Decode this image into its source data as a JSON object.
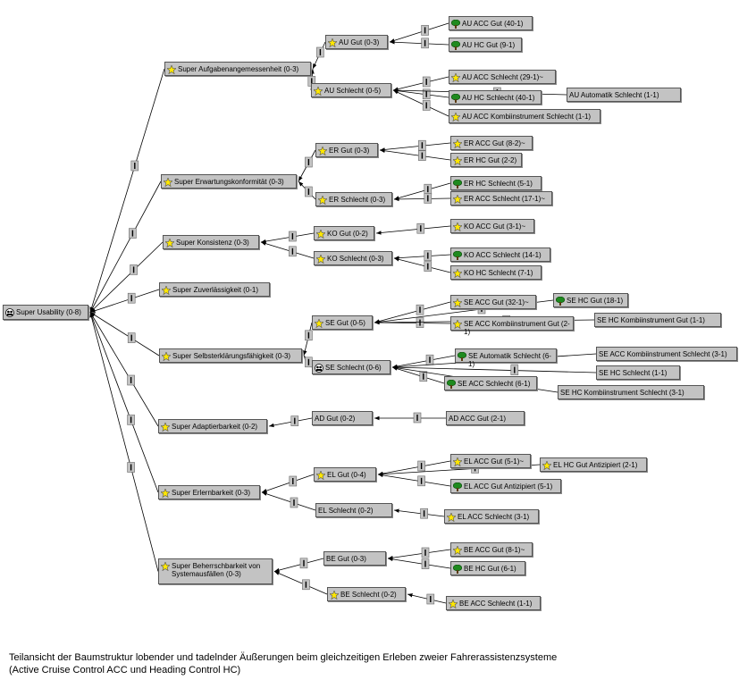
{
  "nodes": [
    {
      "label": "Super Usability (0-8)",
      "parent": null
    },
    {
      "label": "Super Aufgabenangemessenheit (0-3)",
      "parent": 0
    },
    {
      "label": "Super Erwartungskonformität (0-3)",
      "parent": 0
    },
    {
      "label": "Super Konsistenz (0-3)",
      "parent": 0
    },
    {
      "label": "Super Zuverlässigkeit (0-1)",
      "parent": 0
    },
    {
      "label": "Super Selbsterklärungsfähigkeit (0-3)",
      "parent": 0
    },
    {
      "label": "Super Adaptierbarkeit (0-2)",
      "parent": 0
    },
    {
      "label": "Super Erlernbarkeit (0-3)",
      "parent": 0
    },
    {
      "label": "Super Beherrschbarkeit von Systemausfällen (0-3)",
      "parent": 0
    },
    {
      "label": "AU Gut (0-3)",
      "parent": 1
    },
    {
      "label": "AU Schlecht (0-5)",
      "parent": 1
    },
    {
      "label": "ER Gut (0-3)",
      "parent": 2
    },
    {
      "label": "ER Schlecht (0-3)",
      "parent": 2
    },
    {
      "label": "KO Gut (0-2)",
      "parent": 3
    },
    {
      "label": "KO Schlecht (0-3)",
      "parent": 3
    },
    {
      "label": "SE Gut (0-5)",
      "parent": 5
    },
    {
      "label": "SE Schlecht (0-6)",
      "parent": 5
    },
    {
      "label": "AD Gut (0-2)",
      "parent": 6
    },
    {
      "label": "EL Gut (0-4)",
      "parent": 7
    },
    {
      "label": "EL Schlecht (0-2)",
      "parent": 7
    },
    {
      "label": "BE Gut (0-3)",
      "parent": 8
    },
    {
      "label": "BE Schlecht (0-2)",
      "parent": 8
    },
    {
      "label": "AU ACC Gut (40-1)",
      "parent": 9
    },
    {
      "label": "AU HC Gut (9-1)",
      "parent": 9
    },
    {
      "label": "AU ACC Schlecht (29-1)~",
      "parent": 10
    },
    {
      "label": "AU HC Schlecht (40-1)",
      "parent": 10
    },
    {
      "label": "AU Automatik Schlecht (1-1)",
      "parent": 10
    },
    {
      "label": "AU ACC Kombiinstrument Schlecht (1-1)",
      "parent": 10
    },
    {
      "label": "ER ACC Gut (8-2)~",
      "parent": 11
    },
    {
      "label": "ER HC Gut (2-2)",
      "parent": 11
    },
    {
      "label": "ER HC Schlecht (5-1)",
      "parent": 12
    },
    {
      "label": "ER ACC Schlecht (17-1)~",
      "parent": 12
    },
    {
      "label": "KO ACC Gut (3-1)~",
      "parent": 13
    },
    {
      "label": "KO ACC Schlecht (14-1)",
      "parent": 14
    },
    {
      "label": "KO HC Schlecht (7-1)",
      "parent": 14
    },
    {
      "label": "SE ACC Gut (32-1)~",
      "parent": 15
    },
    {
      "label": "SE HC Gut (18-1)",
      "parent": 15
    },
    {
      "label": "SE ACC Kombiinstrument Gut (2-1)",
      "parent": 15
    },
    {
      "label": "SE HC Kombiinstrument Gut (1-1)",
      "parent": 15
    },
    {
      "label": "SE Automatik Schlecht (6-1)",
      "parent": 16
    },
    {
      "label": "SE ACC Kombiinstrument Schlecht (3-1)",
      "parent": 16
    },
    {
      "label": "SE HC Schlecht (1-1)",
      "parent": 16
    },
    {
      "label": "SE ACC Schlecht (6-1)",
      "parent": 16
    },
    {
      "label": "SE HC Kombiinstrument Schlecht (3-1)",
      "parent": 16
    },
    {
      "label": "AD ACC Gut (2-1)",
      "parent": 17
    },
    {
      "label": "EL ACC Gut (5-1)~",
      "parent": 18
    },
    {
      "label": "EL HC Gut Antizipiert (2-1)",
      "parent": 18
    },
    {
      "label": "EL ACC Gut Antizipiert (5-1)",
      "parent": 18
    },
    {
      "label": "EL ACC Schlecht (3-1)",
      "parent": 19
    },
    {
      "label": "BE ACC Gut (8-1)~",
      "parent": 20
    },
    {
      "label": "BE HC Gut (6-1)",
      "parent": 20
    },
    {
      "label": "BE ACC Schlecht (1-1)",
      "parent": 21
    }
  ],
  "caption": [
    "Teilansicht der Baumstruktur lobender und tadelnder Äußerungen beim gleichzeitigen Erleben zweier Fahrerassistenzsysteme",
    "(Active Cruise Control ACC und Heading Control HC)"
  ]
}
